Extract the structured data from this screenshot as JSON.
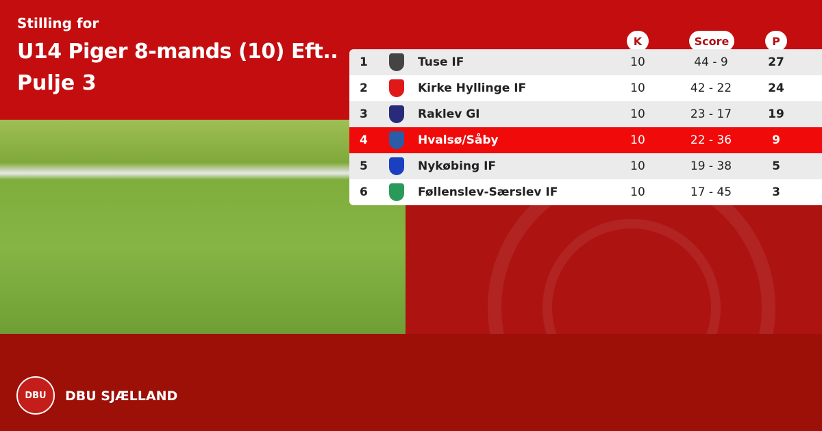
{
  "header": {
    "subtitle": "Stilling for",
    "title": "U14 Piger 8-mands (10) Eft..",
    "pool": "Pulje 3"
  },
  "columns": {
    "k": "K",
    "score": "Score",
    "p": "P"
  },
  "rows": [
    {
      "rank": "1",
      "team": "Tuse IF",
      "k": "10",
      "score": "44 - 9",
      "p": "27",
      "crest": "#444444"
    },
    {
      "rank": "2",
      "team": "Kirke Hyllinge IF",
      "k": "10",
      "score": "42 - 22",
      "p": "24",
      "crest": "#e01818"
    },
    {
      "rank": "3",
      "team": "Raklev GI",
      "k": "10",
      "score": "23 - 17",
      "p": "19",
      "crest": "#2a2a7a"
    },
    {
      "rank": "4",
      "team": "Hvalsø/Såby",
      "k": "10",
      "score": "22 - 36",
      "p": "9",
      "crest": "#2b5ca8",
      "highlight": true
    },
    {
      "rank": "5",
      "team": "Nykøbing IF",
      "k": "10",
      "score": "19 - 38",
      "p": "5",
      "crest": "#1a3fc0"
    },
    {
      "rank": "6",
      "team": "Føllenslev-Særslev IF",
      "k": "10",
      "score": "17 - 45",
      "p": "3",
      "crest": "#2a9a5a"
    }
  ],
  "footer": {
    "brand": "DBU SJÆLLAND",
    "logo_text": "DBU"
  }
}
